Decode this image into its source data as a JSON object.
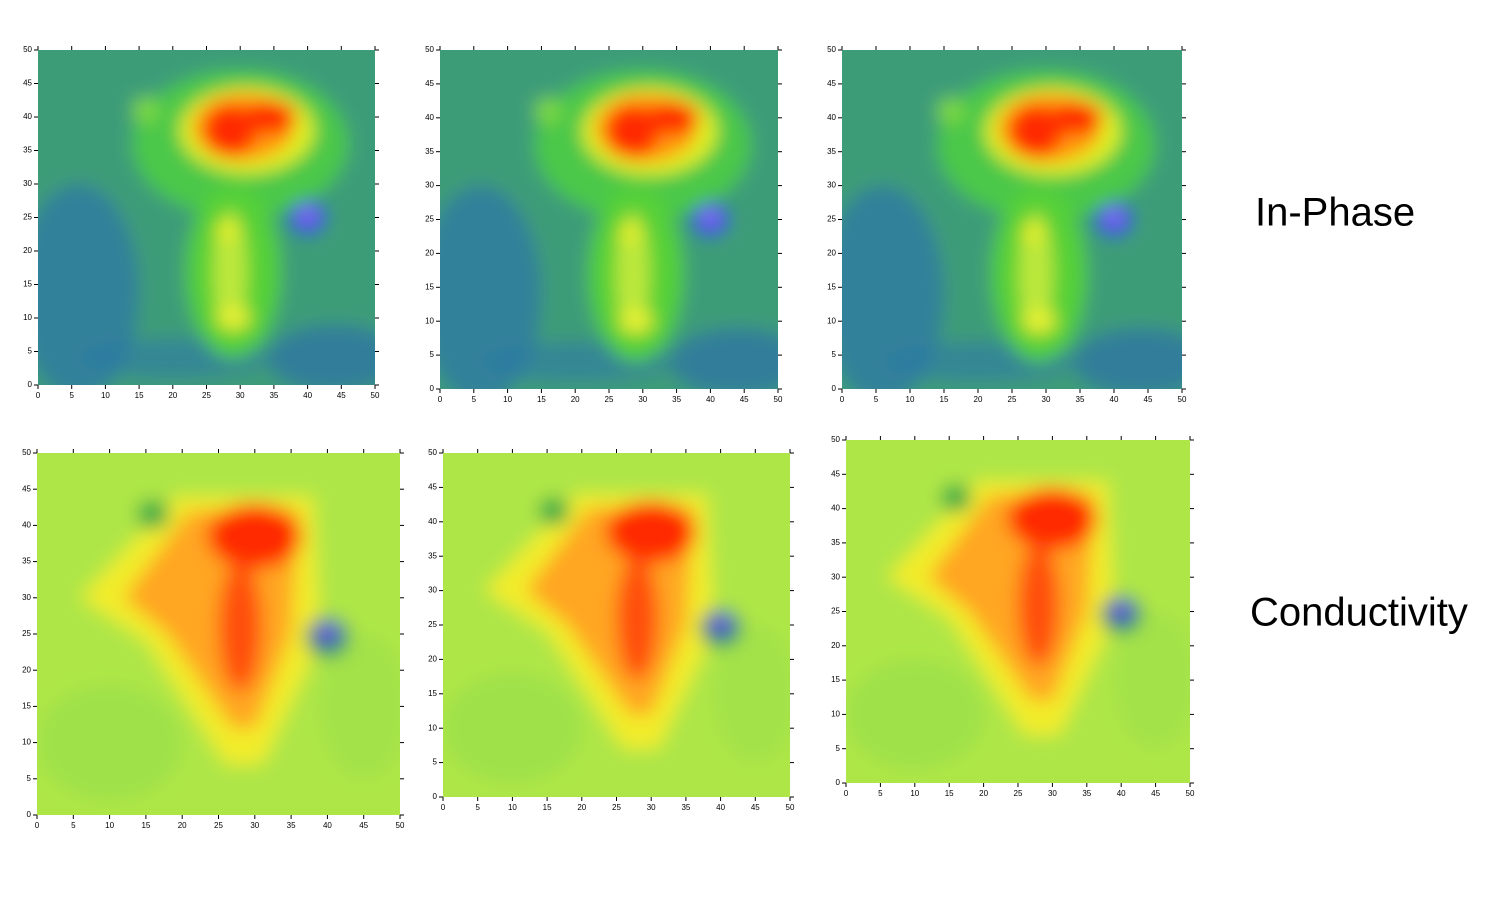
{
  "chart_data": [
    {
      "type": "heatmap",
      "xlim": [
        0,
        50
      ],
      "ylim": [
        0,
        50
      ],
      "xticks": [
        0,
        5,
        10,
        15,
        20,
        25,
        30,
        35,
        40,
        45,
        50
      ],
      "yticks": [
        0,
        5,
        10,
        15,
        20,
        25,
        30,
        35,
        40,
        45,
        50
      ]
    },
    {
      "type": "heatmap",
      "xlim": [
        0,
        50
      ],
      "ylim": [
        0,
        50
      ],
      "xticks": [
        0,
        5,
        10,
        15,
        20,
        25,
        30,
        35,
        40,
        45,
        50
      ],
      "yticks": [
        0,
        5,
        10,
        15,
        20,
        25,
        30,
        35,
        40,
        45,
        50
      ]
    },
    {
      "type": "heatmap",
      "xlim": [
        0,
        50
      ],
      "ylim": [
        0,
        50
      ],
      "xticks": [
        0,
        5,
        10,
        15,
        20,
        25,
        30,
        35,
        40,
        45,
        50
      ],
      "yticks": [
        0,
        5,
        10,
        15,
        20,
        25,
        30,
        35,
        40,
        45,
        50
      ]
    },
    {
      "type": "heatmap",
      "xlim": [
        0,
        50
      ],
      "ylim": [
        0,
        50
      ],
      "xticks": [
        0,
        5,
        10,
        15,
        20,
        25,
        30,
        35,
        40,
        45,
        50
      ],
      "yticks": [
        0,
        5,
        10,
        15,
        20,
        25,
        30,
        35,
        40,
        45,
        50
      ]
    },
    {
      "type": "heatmap",
      "xlim": [
        0,
        50
      ],
      "ylim": [
        0,
        50
      ],
      "xticks": [
        0,
        5,
        10,
        15,
        20,
        25,
        30,
        35,
        40,
        45,
        50
      ],
      "yticks": [
        0,
        5,
        10,
        15,
        20,
        25,
        30,
        35,
        40,
        45,
        50
      ]
    },
    {
      "type": "heatmap",
      "xlim": [
        0,
        50
      ],
      "ylim": [
        0,
        50
      ],
      "xticks": [
        0,
        5,
        10,
        15,
        20,
        25,
        30,
        35,
        40,
        45,
        50
      ],
      "yticks": [
        0,
        5,
        10,
        15,
        20,
        25,
        30,
        35,
        40,
        45,
        50
      ]
    }
  ],
  "row_labels": [
    "In-Phase",
    "Conductivity"
  ]
}
